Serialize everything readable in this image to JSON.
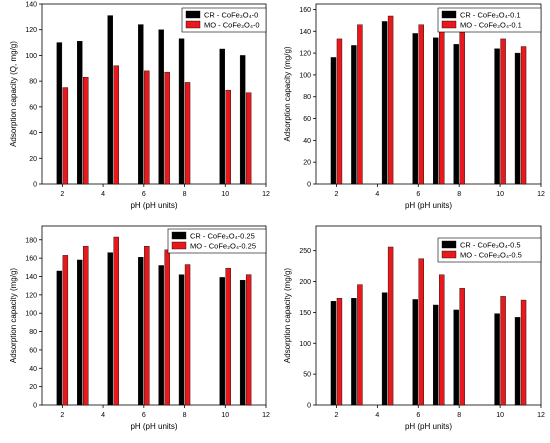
{
  "colors": {
    "cr": "#000000",
    "mo": "#e8191c"
  },
  "chart_data": [
    {
      "type": "bar",
      "xlabel": "pH (pH units)",
      "ylabel": "Adsorption capacity (Q, mg/g)",
      "xlim": [
        1,
        12
      ],
      "ylim": [
        0,
        140
      ],
      "xticks": [
        2,
        4,
        6,
        8,
        10,
        12
      ],
      "yticks": [
        0,
        20,
        40,
        60,
        80,
        100,
        120,
        140
      ],
      "x": [
        2,
        3,
        4.5,
        6,
        7,
        8,
        10,
        11
      ],
      "legend_position": "top-right",
      "series": [
        {
          "name": "CR - CoFe₂O₄-0",
          "values": [
            110,
            111,
            131,
            124,
            120,
            113,
            105,
            100
          ]
        },
        {
          "name": "MO - CoFe₂O₄-0",
          "values": [
            75,
            83,
            92,
            88,
            87,
            79,
            73,
            71
          ]
        }
      ]
    },
    {
      "type": "bar",
      "xlabel": "pH (pH units)",
      "ylabel": "Adsorption capacity (mg/g)",
      "xlim": [
        1,
        12
      ],
      "ylim": [
        0,
        165
      ],
      "xticks": [
        2,
        4,
        6,
        8,
        10,
        12
      ],
      "yticks": [
        0,
        20,
        40,
        60,
        80,
        100,
        120,
        140,
        160
      ],
      "x": [
        2,
        3,
        4.5,
        6,
        7,
        8,
        10,
        11
      ],
      "legend_position": "top-right",
      "series": [
        {
          "name": "CR - CoFe₂O₄-0.1",
          "values": [
            116,
            127,
            149,
            138,
            134,
            128,
            124,
            120
          ]
        },
        {
          "name": "MO - CoFe₂O₄-0.1",
          "values": [
            133,
            146,
            154,
            146,
            143,
            139,
            133,
            126
          ]
        }
      ]
    },
    {
      "type": "bar",
      "xlabel": "pH (pH units)",
      "ylabel": "Adsorption capacity (mg/g)",
      "xlim": [
        1,
        12
      ],
      "ylim": [
        0,
        195
      ],
      "xticks": [
        2,
        4,
        6,
        8,
        10,
        12
      ],
      "yticks": [
        0,
        20,
        40,
        60,
        80,
        100,
        120,
        140,
        160,
        180
      ],
      "x": [
        2,
        3,
        4.5,
        6,
        7,
        8,
        10,
        11
      ],
      "legend_position": "top-right",
      "series": [
        {
          "name": "CR - CoFe₂O₄-0.25",
          "values": [
            146,
            158,
            166,
            161,
            152,
            142,
            139,
            136
          ]
        },
        {
          "name": "MO - CoFe₂O₄-0.25",
          "values": [
            163,
            173,
            183,
            173,
            169,
            153,
            149,
            142
          ]
        }
      ]
    },
    {
      "type": "bar",
      "xlabel": "pH (pH units)",
      "ylabel": "Adsorption capacity (mg/g)",
      "xlim": [
        1,
        12
      ],
      "ylim": [
        0,
        290
      ],
      "xticks": [
        2,
        4,
        6,
        8,
        10,
        12
      ],
      "yticks": [
        0,
        50,
        100,
        150,
        200,
        250
      ],
      "x": [
        2,
        3,
        4.5,
        6,
        7,
        8,
        10,
        11
      ],
      "legend_position": "top-right",
      "series": [
        {
          "name": "CR - CoFe₂O₄-0.5",
          "values": [
            168,
            173,
            182,
            171,
            162,
            154,
            148,
            142
          ]
        },
        {
          "name": "MO - CoFe₂O₄-0.5",
          "values": [
            173,
            195,
            256,
            237,
            211,
            189,
            176,
            170
          ]
        }
      ]
    }
  ]
}
